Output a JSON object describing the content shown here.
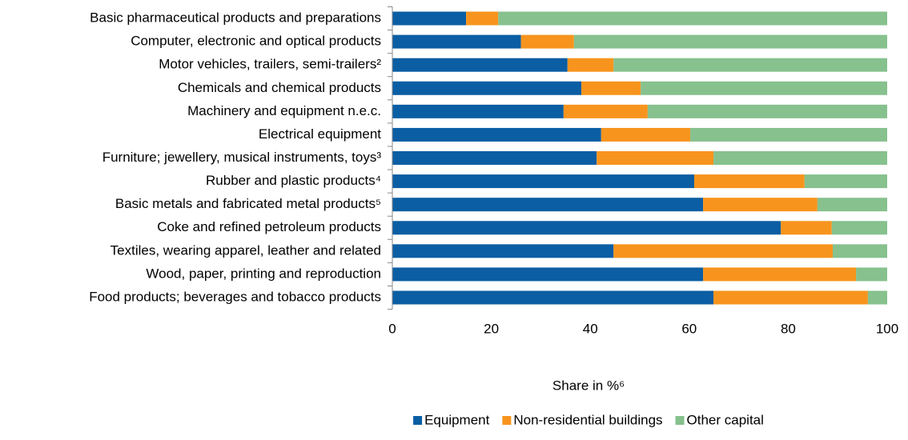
{
  "chart_data": {
    "type": "stacked-barh",
    "categories": [
      "Basic pharmaceutical products and preparations",
      "Computer, electronic and optical products",
      "Motor vehicles, trailers, semi-trailers²",
      "Chemicals and chemical products",
      "Machinery and equipment n.e.c.",
      "Electrical equipment",
      "Furniture; jewellery, musical instruments, toys³",
      "Rubber and plastic products⁴",
      "Basic metals and fabricated metal products⁵",
      "Coke and refined petroleum products",
      "Textiles, wearing apparel, leather and related",
      "Wood, paper, printing and reproduction",
      "Food products; beverages and tobacco products"
    ],
    "series": [
      {
        "name": "Equipment",
        "color": "#0b5ea3",
        "values": [
          14.9,
          26.0,
          35.4,
          38.2,
          34.6,
          42.2,
          41.3,
          61.0,
          62.8,
          78.5,
          44.7,
          62.8,
          64.9
        ]
      },
      {
        "name": "Non-residential buildings",
        "color": "#f7941d",
        "values": [
          6.5,
          10.7,
          9.3,
          12.0,
          17.0,
          18.0,
          23.6,
          22.3,
          23.1,
          10.3,
          44.3,
          30.9,
          31.2
        ]
      },
      {
        "name": "Other capital",
        "color": "#86c18e",
        "values": [
          78.6,
          63.3,
          55.3,
          49.8,
          48.4,
          39.8,
          35.1,
          16.7,
          14.1,
          11.2,
          11.0,
          6.3,
          3.9
        ]
      }
    ],
    "x_label": "Share in %⁶",
    "xlim": [
      0,
      100
    ],
    "xticks": [
      0,
      20,
      40,
      60,
      80,
      100
    ],
    "legend": "bottom"
  }
}
